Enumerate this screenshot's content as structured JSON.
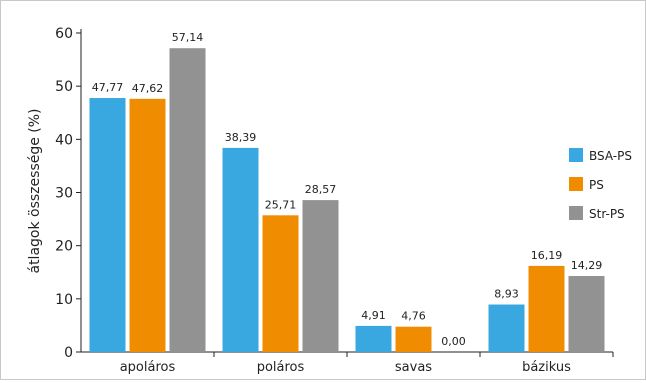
{
  "chart_data": {
    "type": "bar",
    "title": "",
    "xlabel": "",
    "ylabel": "átlagok összessége (%)",
    "ylim": [
      0,
      60
    ],
    "yticks": [
      0,
      10,
      20,
      30,
      40,
      50,
      60
    ],
    "grid": false,
    "legend_position": "right",
    "categories": [
      "apoláros",
      "poláros",
      "savas",
      "bázikus"
    ],
    "series": [
      {
        "name": "BSA-PS",
        "color": "#3aa8e0",
        "values": [
          47.77,
          38.39,
          4.91,
          8.93
        ],
        "labels": [
          "47,77",
          "38,39",
          "4,91",
          "8,93"
        ]
      },
      {
        "name": "PS",
        "color": "#f08c00",
        "values": [
          47.62,
          25.71,
          4.76,
          16.19
        ],
        "labels": [
          "47,62",
          "25,71",
          "4,76",
          "16,19"
        ]
      },
      {
        "name": "Str-PS",
        "color": "#929292",
        "values": [
          57.14,
          28.57,
          0.0,
          14.29
        ],
        "labels": [
          "57,14",
          "28,57",
          "0,00",
          "14,29"
        ]
      }
    ]
  }
}
